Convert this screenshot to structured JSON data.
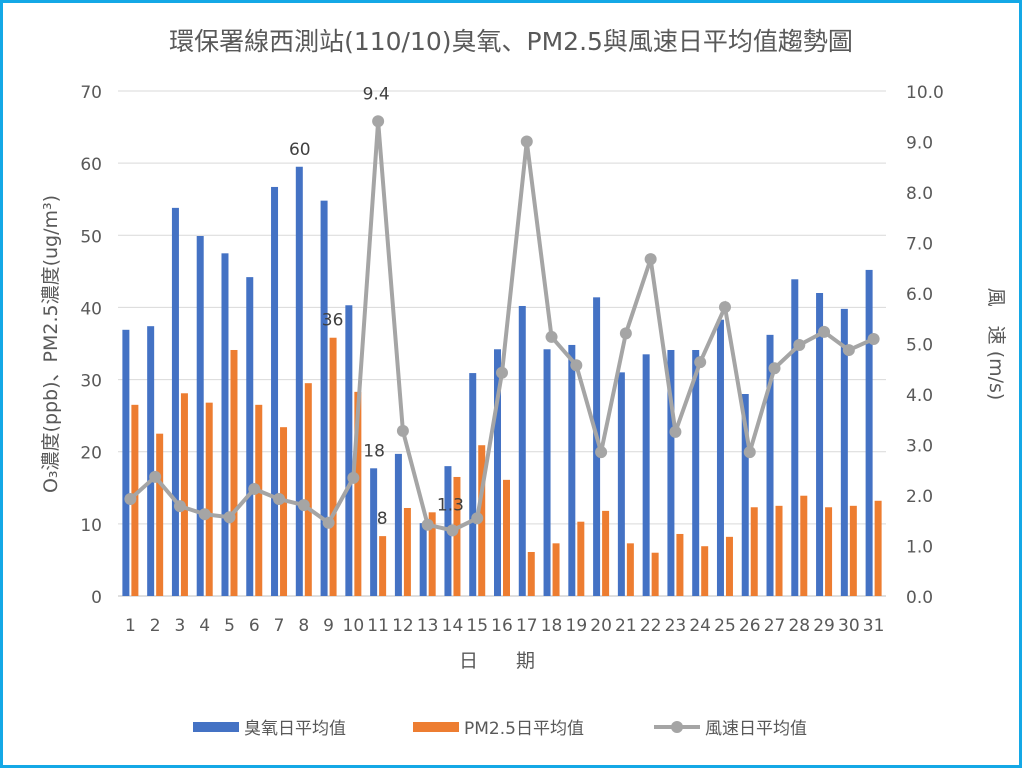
{
  "chart_data": {
    "type": "bar",
    "title": "環保署線西測站(110/10)臭氧、PM2.5與風速日平均值趨勢圖",
    "xlabel": "日　　期",
    "ylabel": "O₃濃度(ppb)、PM2.5濃度(ug/m³)",
    "y2label": "風　速 (m/s)",
    "ylim": [
      0,
      70
    ],
    "y2lim": [
      0,
      10
    ],
    "yticks": [
      "0",
      "10",
      "20",
      "30",
      "40",
      "50",
      "60",
      "70"
    ],
    "y2ticks": [
      "0.0",
      "1.0",
      "2.0",
      "3.0",
      "4.0",
      "5.0",
      "6.0",
      "7.0",
      "8.0",
      "9.0",
      "10.0"
    ],
    "categories": [
      "1",
      "2",
      "3",
      "4",
      "5",
      "6",
      "7",
      "8",
      "9",
      "10",
      "11",
      "12",
      "13",
      "14",
      "15",
      "16",
      "17",
      "18",
      "19",
      "20",
      "21",
      "22",
      "23",
      "24",
      "25",
      "26",
      "27",
      "28",
      "29",
      "30",
      "31"
    ],
    "grid": true,
    "legend_position": "bottom",
    "series": [
      {
        "name": "臭氧日平均值",
        "type": "bar",
        "axis": "left",
        "color": "#4472C4",
        "values": [
          36.9,
          37.4,
          53.8,
          49.9,
          47.5,
          44.2,
          56.7,
          59.5,
          54.8,
          40.3,
          17.7,
          19.7,
          10.1,
          18.0,
          30.9,
          34.2,
          40.2,
          34.2,
          34.8,
          41.4,
          31.0,
          33.5,
          34.1,
          34.1,
          38.3,
          28.0,
          36.2,
          43.9,
          42.0,
          39.8,
          45.2
        ],
        "labels": {
          "8": "60",
          "11": "18"
        }
      },
      {
        "name": "PM2.5日平均值",
        "type": "bar",
        "axis": "left",
        "color": "#ED7D31",
        "values": [
          26.5,
          22.5,
          28.1,
          26.8,
          34.1,
          26.5,
          23.4,
          29.5,
          35.8,
          28.3,
          8.3,
          12.2,
          11.6,
          16.5,
          20.9,
          16.1,
          6.1,
          7.3,
          10.3,
          11.8,
          7.3,
          6.0,
          8.6,
          6.9,
          8.2,
          12.3,
          12.5,
          13.9,
          12.3,
          12.5,
          13.2
        ],
        "labels": {
          "9": "36",
          "11": "8"
        }
      },
      {
        "name": "風速日平均值",
        "type": "line",
        "axis": "right",
        "color": "#A5A5A5",
        "values": [
          1.92,
          2.36,
          1.78,
          1.62,
          1.56,
          2.12,
          1.92,
          1.8,
          1.45,
          2.34,
          9.4,
          3.27,
          1.41,
          1.3,
          1.54,
          4.42,
          9.0,
          5.13,
          4.57,
          2.85,
          5.2,
          6.67,
          3.25,
          4.63,
          5.72,
          2.85,
          4.51,
          4.97,
          5.23,
          4.87,
          5.09
        ],
        "labels": {
          "11": "9.4",
          "14": "1.3"
        }
      }
    ]
  }
}
